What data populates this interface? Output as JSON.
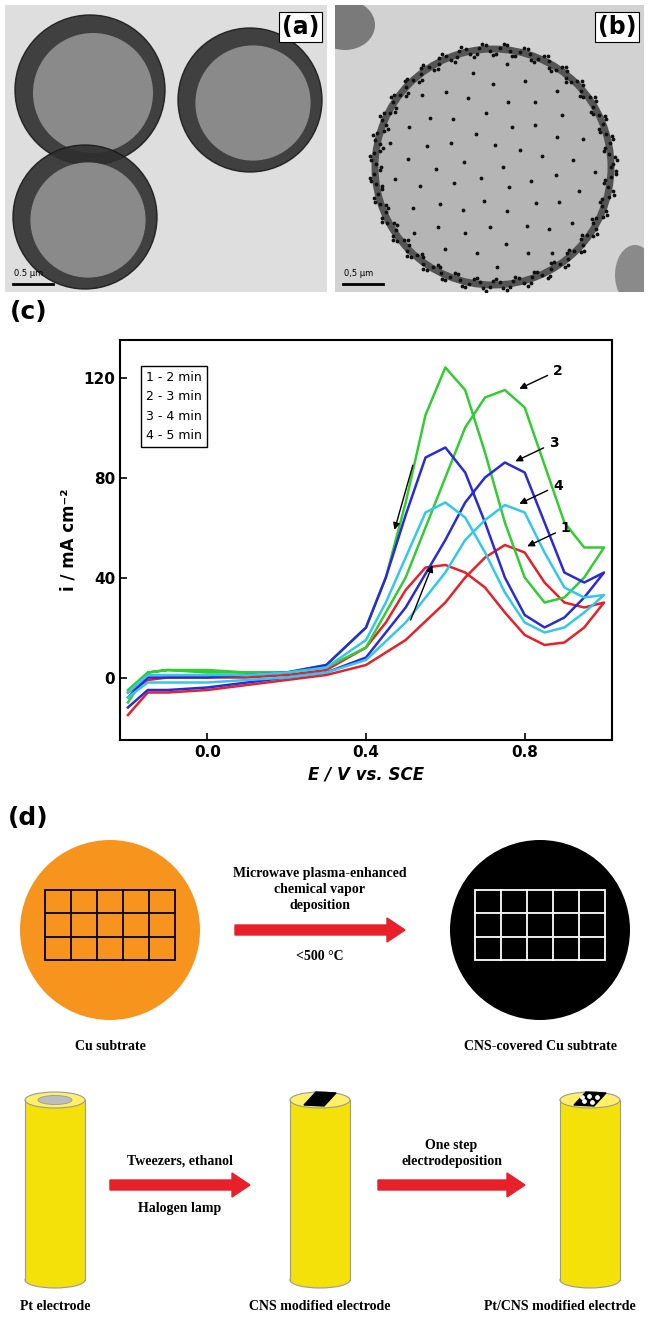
{
  "panel_labels": {
    "a": "(a)",
    "b": "(b)",
    "c": "(c)",
    "d": "(d)"
  },
  "images": {
    "a": {
      "scale_bar": "0.5 µm"
    },
    "b": {
      "scale_bar": "0,5 µm"
    }
  },
  "chart_data": {
    "type": "line",
    "x_label": "E / V vs. SCE",
    "y_label": "i / mA cm⁻²",
    "xlim": [
      -0.22,
      1.02
    ],
    "xticks": [
      0.0,
      0.4,
      0.8
    ],
    "ylim": [
      -25,
      135
    ],
    "yticks": [
      0,
      40,
      80,
      120
    ],
    "legend": "upper left",
    "x": [
      -0.2,
      -0.15,
      -0.1,
      0.0,
      0.1,
      0.2,
      0.3,
      0.4,
      0.5,
      0.6,
      0.65,
      0.7,
      0.75,
      0.8,
      0.85,
      0.9,
      0.95,
      1.0,
      0.95,
      0.9,
      0.85,
      0.8,
      0.75,
      0.7,
      0.65,
      0.6,
      0.55,
      0.5,
      0.45,
      0.4,
      0.3,
      0.2,
      0.1,
      0.0,
      -0.1,
      -0.15,
      -0.2
    ],
    "series": [
      {
        "name": "1 - 2 min",
        "color": "#e8202a",
        "values": [
          -15,
          -6,
          -6,
          -5,
          -3,
          -1,
          1,
          5,
          15,
          30,
          40,
          48,
          53,
          50,
          38,
          30,
          28,
          30,
          20,
          14,
          13,
          17,
          26,
          36,
          42,
          45,
          44,
          35,
          22,
          12,
          3,
          1,
          0,
          0,
          0,
          -1,
          -6
        ]
      },
      {
        "name": "2 - 3 min",
        "color": "#33cc33",
        "values": [
          -10,
          2,
          3,
          3,
          2,
          2,
          4,
          12,
          40,
          80,
          100,
          112,
          115,
          108,
          85,
          62,
          52,
          52,
          40,
          32,
          30,
          40,
          62,
          90,
          115,
          124,
          105,
          70,
          40,
          20,
          5,
          2,
          2,
          2,
          3,
          2,
          -5
        ]
      },
      {
        "name": "3 - 4 min",
        "color": "#2a2ad8",
        "values": [
          -12,
          -5,
          -5,
          -4,
          -2,
          0,
          2,
          8,
          28,
          55,
          70,
          80,
          86,
          82,
          62,
          42,
          38,
          42,
          32,
          24,
          20,
          25,
          40,
          62,
          82,
          92,
          88,
          65,
          40,
          20,
          5,
          2,
          1,
          0,
          0,
          0,
          -8
        ]
      },
      {
        "name": "4 - 5 min",
        "color": "#33c8e8",
        "values": [
          -8,
          -2,
          -2,
          -2,
          -1,
          0,
          2,
          7,
          22,
          42,
          55,
          63,
          69,
          66,
          50,
          36,
          32,
          33,
          26,
          20,
          18,
          22,
          34,
          50,
          64,
          70,
          66,
          48,
          30,
          15,
          4,
          2,
          1,
          1,
          1,
          1,
          -6
        ]
      }
    ],
    "annotations": [
      {
        "text": "2",
        "x": 0.78,
        "y": 115
      },
      {
        "text": "3",
        "x": 0.77,
        "y": 86
      },
      {
        "text": "4",
        "x": 0.78,
        "y": 69
      },
      {
        "text": "1",
        "x": 0.8,
        "y": 52
      }
    ]
  },
  "diagram": {
    "row1": {
      "nodes": [
        "Cu subtrate",
        "CNS-covered Cu subtrate"
      ],
      "arrow": {
        "above": "Microwave plasma-enhanced\nchemical vapor\ndeposition",
        "below": "<500 °C"
      }
    },
    "row2": {
      "nodes": [
        "Pt electrode",
        "CNS modified electrode",
        "Pt/CNS modified electrde"
      ],
      "arrows": [
        {
          "above": "Tweezers, ethanol",
          "below": "Halogen lamp"
        },
        {
          "above": "One step\nelectrodeposition"
        }
      ]
    }
  }
}
